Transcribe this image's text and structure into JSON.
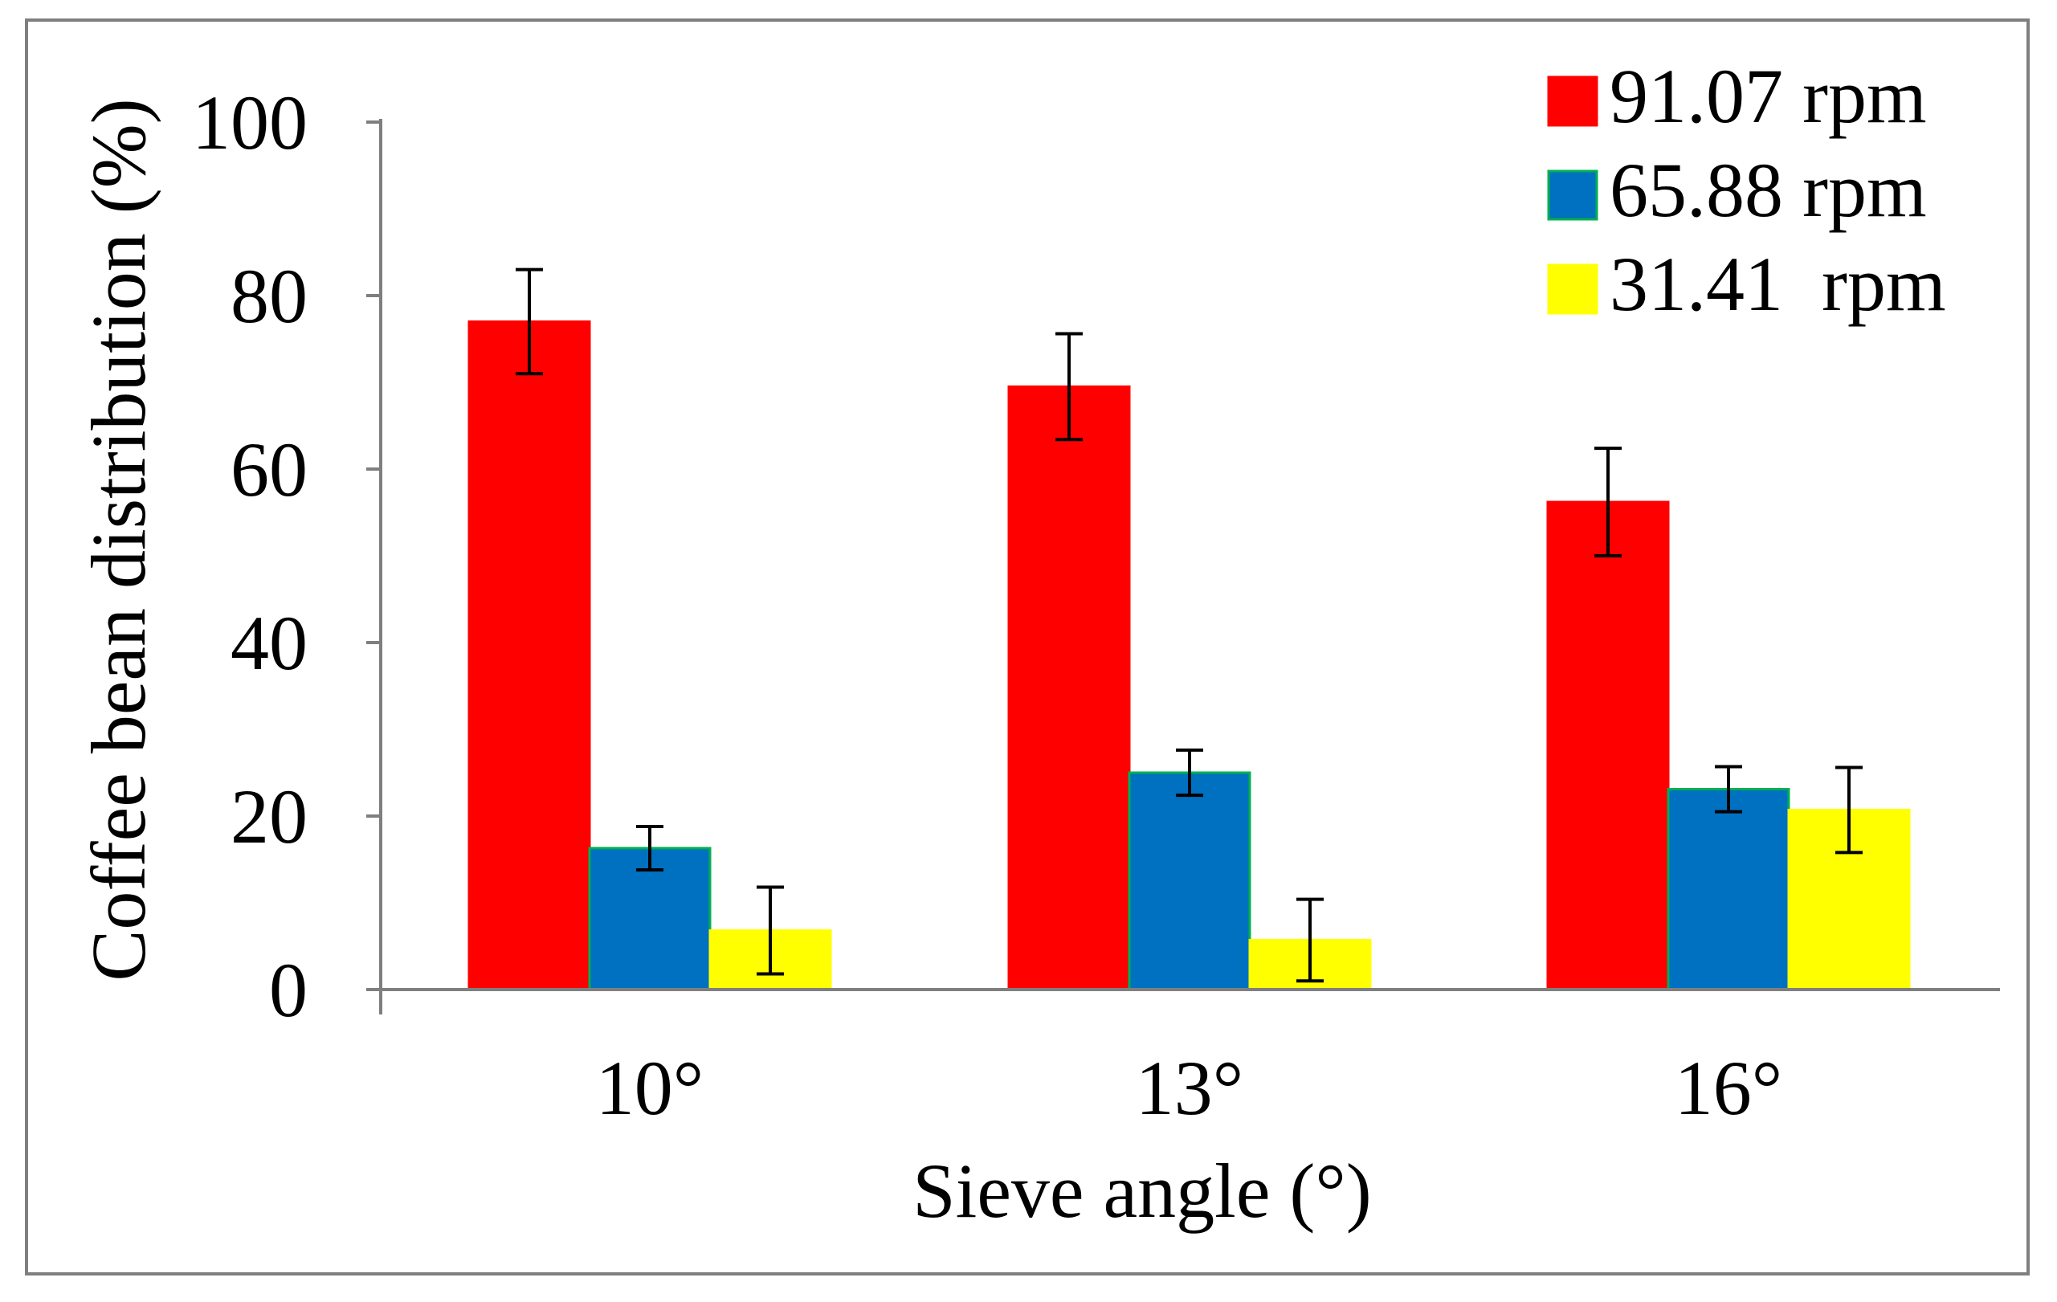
{
  "chart_data": {
    "type": "bar",
    "title": "",
    "xlabel": "Sieve angle (°)",
    "ylabel": "Coffee bean distribution (%)",
    "ylim": [
      0,
      100
    ],
    "yticks": [
      0,
      20,
      40,
      60,
      80,
      100
    ],
    "grid": false,
    "legend_position": "top-right",
    "categories": [
      "10°",
      "13°",
      "16°"
    ],
    "series": [
      {
        "name": "91.07 rpm",
        "color": "#ff0000",
        "border": "#ff0000",
        "values": [
          77.0,
          69.5,
          56.2
        ],
        "errors": [
          6.0,
          6.1,
          6.2
        ]
      },
      {
        "name": "65.88 rpm",
        "color": "#0070c0",
        "border": "#00b050",
        "values": [
          16.3,
          25.0,
          23.1
        ],
        "errors": [
          2.5,
          2.6,
          2.6
        ]
      },
      {
        "name": "31.41  rpm",
        "color": "#ffff00",
        "border": "#ffff00",
        "values": [
          6.8,
          5.7,
          20.7
        ],
        "errors": [
          5.0,
          4.7,
          4.9
        ]
      }
    ]
  }
}
